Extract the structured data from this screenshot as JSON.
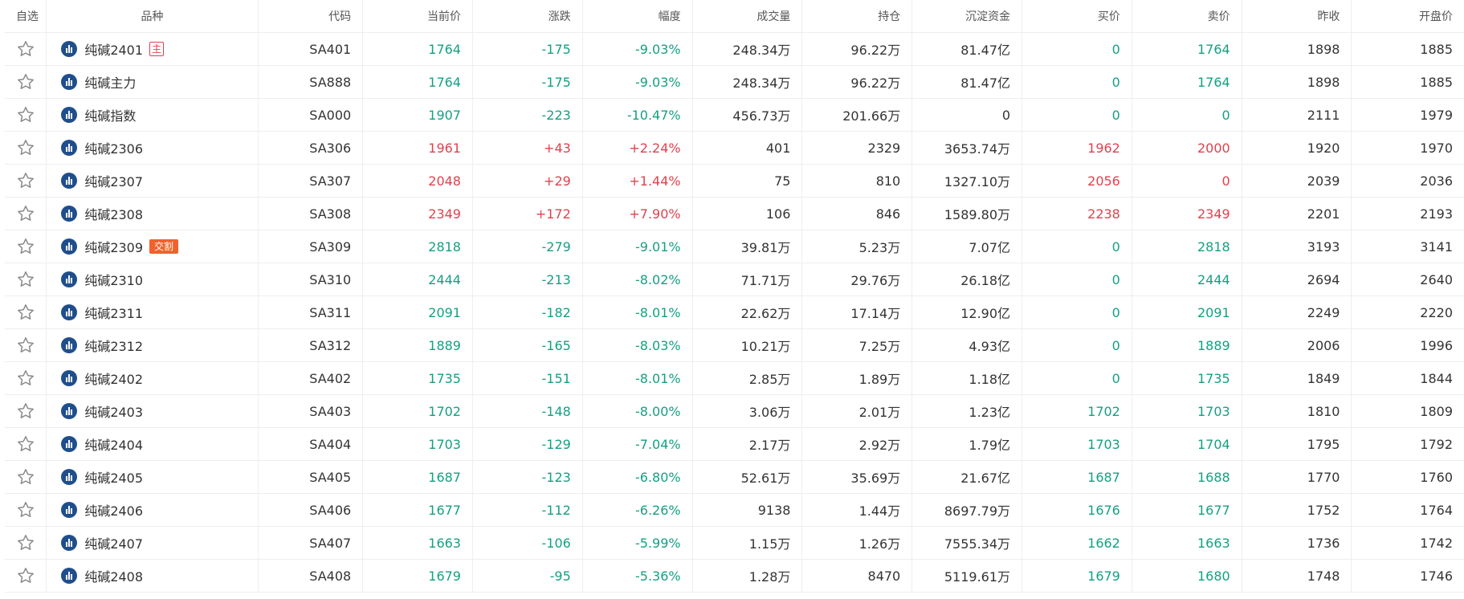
{
  "columns": [
    "自选",
    "品种",
    "代码",
    "当前价",
    "涨跌",
    "幅度",
    "成交量",
    "持仓",
    "沉淀资金",
    "买价",
    "卖价",
    "昨收",
    "开盘价"
  ],
  "rows": [
    {
      "name": "纯碱2401",
      "tag": "主",
      "tag_type": "main",
      "code": "SA401",
      "price": "1764",
      "change": "-175",
      "pct": "-9.03%",
      "volume": "248.34万",
      "oi": "96.22万",
      "fund": "81.47亿",
      "bid": "0",
      "ask": "1764",
      "prev": "1898",
      "open": "1885",
      "dir": "down",
      "bid_dir": "flat",
      "ask_dir": "down"
    },
    {
      "name": "纯碱主力",
      "tag": "",
      "tag_type": "",
      "code": "SA888",
      "price": "1764",
      "change": "-175",
      "pct": "-9.03%",
      "volume": "248.34万",
      "oi": "96.22万",
      "fund": "81.47亿",
      "bid": "0",
      "ask": "1764",
      "prev": "1898",
      "open": "1885",
      "dir": "down",
      "bid_dir": "flat",
      "ask_dir": "down"
    },
    {
      "name": "纯碱指数",
      "tag": "",
      "tag_type": "",
      "code": "SA000",
      "price": "1907",
      "change": "-223",
      "pct": "-10.47%",
      "volume": "456.73万",
      "oi": "201.66万",
      "fund": "0",
      "bid": "0",
      "ask": "0",
      "prev": "2111",
      "open": "1979",
      "dir": "down",
      "bid_dir": "flat",
      "ask_dir": "flat"
    },
    {
      "name": "纯碱2306",
      "tag": "",
      "tag_type": "",
      "code": "SA306",
      "price": "1961",
      "change": "+43",
      "pct": "+2.24%",
      "volume": "401",
      "oi": "2329",
      "fund": "3653.74万",
      "bid": "1962",
      "ask": "2000",
      "prev": "1920",
      "open": "1970",
      "dir": "up",
      "bid_dir": "up",
      "ask_dir": "up"
    },
    {
      "name": "纯碱2307",
      "tag": "",
      "tag_type": "",
      "code": "SA307",
      "price": "2048",
      "change": "+29",
      "pct": "+1.44%",
      "volume": "75",
      "oi": "810",
      "fund": "1327.10万",
      "bid": "2056",
      "ask": "0",
      "prev": "2039",
      "open": "2036",
      "dir": "up",
      "bid_dir": "up",
      "ask_dir": "up"
    },
    {
      "name": "纯碱2308",
      "tag": "",
      "tag_type": "",
      "code": "SA308",
      "price": "2349",
      "change": "+172",
      "pct": "+7.90%",
      "volume": "106",
      "oi": "846",
      "fund": "1589.80万",
      "bid": "2238",
      "ask": "2349",
      "prev": "2201",
      "open": "2193",
      "dir": "up",
      "bid_dir": "up",
      "ask_dir": "up"
    },
    {
      "name": "纯碱2309",
      "tag": "交割",
      "tag_type": "deliver",
      "code": "SA309",
      "price": "2818",
      "change": "-279",
      "pct": "-9.01%",
      "volume": "39.81万",
      "oi": "5.23万",
      "fund": "7.07亿",
      "bid": "0",
      "ask": "2818",
      "prev": "3193",
      "open": "3141",
      "dir": "down",
      "bid_dir": "flat",
      "ask_dir": "down"
    },
    {
      "name": "纯碱2310",
      "tag": "",
      "tag_type": "",
      "code": "SA310",
      "price": "2444",
      "change": "-213",
      "pct": "-8.02%",
      "volume": "71.71万",
      "oi": "29.76万",
      "fund": "26.18亿",
      "bid": "0",
      "ask": "2444",
      "prev": "2694",
      "open": "2640",
      "dir": "down",
      "bid_dir": "flat",
      "ask_dir": "down"
    },
    {
      "name": "纯碱2311",
      "tag": "",
      "tag_type": "",
      "code": "SA311",
      "price": "2091",
      "change": "-182",
      "pct": "-8.01%",
      "volume": "22.62万",
      "oi": "17.14万",
      "fund": "12.90亿",
      "bid": "0",
      "ask": "2091",
      "prev": "2249",
      "open": "2220",
      "dir": "down",
      "bid_dir": "flat",
      "ask_dir": "down"
    },
    {
      "name": "纯碱2312",
      "tag": "",
      "tag_type": "",
      "code": "SA312",
      "price": "1889",
      "change": "-165",
      "pct": "-8.03%",
      "volume": "10.21万",
      "oi": "7.25万",
      "fund": "4.93亿",
      "bid": "0",
      "ask": "1889",
      "prev": "2006",
      "open": "1996",
      "dir": "down",
      "bid_dir": "flat",
      "ask_dir": "down"
    },
    {
      "name": "纯碱2402",
      "tag": "",
      "tag_type": "",
      "code": "SA402",
      "price": "1735",
      "change": "-151",
      "pct": "-8.01%",
      "volume": "2.85万",
      "oi": "1.89万",
      "fund": "1.18亿",
      "bid": "0",
      "ask": "1735",
      "prev": "1849",
      "open": "1844",
      "dir": "down",
      "bid_dir": "flat",
      "ask_dir": "down"
    },
    {
      "name": "纯碱2403",
      "tag": "",
      "tag_type": "",
      "code": "SA403",
      "price": "1702",
      "change": "-148",
      "pct": "-8.00%",
      "volume": "3.06万",
      "oi": "2.01万",
      "fund": "1.23亿",
      "bid": "1702",
      "ask": "1703",
      "prev": "1810",
      "open": "1809",
      "dir": "down",
      "bid_dir": "down",
      "ask_dir": "down"
    },
    {
      "name": "纯碱2404",
      "tag": "",
      "tag_type": "",
      "code": "SA404",
      "price": "1703",
      "change": "-129",
      "pct": "-7.04%",
      "volume": "2.17万",
      "oi": "2.92万",
      "fund": "1.79亿",
      "bid": "1703",
      "ask": "1704",
      "prev": "1795",
      "open": "1792",
      "dir": "down",
      "bid_dir": "down",
      "ask_dir": "down"
    },
    {
      "name": "纯碱2405",
      "tag": "",
      "tag_type": "",
      "code": "SA405",
      "price": "1687",
      "change": "-123",
      "pct": "-6.80%",
      "volume": "52.61万",
      "oi": "35.69万",
      "fund": "21.67亿",
      "bid": "1687",
      "ask": "1688",
      "prev": "1770",
      "open": "1760",
      "dir": "down",
      "bid_dir": "down",
      "ask_dir": "down"
    },
    {
      "name": "纯碱2406",
      "tag": "",
      "tag_type": "",
      "code": "SA406",
      "price": "1677",
      "change": "-112",
      "pct": "-6.26%",
      "volume": "9138",
      "oi": "1.44万",
      "fund": "8697.79万",
      "bid": "1676",
      "ask": "1677",
      "prev": "1752",
      "open": "1764",
      "dir": "down",
      "bid_dir": "down",
      "ask_dir": "down"
    },
    {
      "name": "纯碱2407",
      "tag": "",
      "tag_type": "",
      "code": "SA407",
      "price": "1663",
      "change": "-106",
      "pct": "-5.99%",
      "volume": "1.15万",
      "oi": "1.26万",
      "fund": "7555.34万",
      "bid": "1662",
      "ask": "1663",
      "prev": "1736",
      "open": "1742",
      "dir": "down",
      "bid_dir": "down",
      "ask_dir": "down"
    },
    {
      "name": "纯碱2408",
      "tag": "",
      "tag_type": "",
      "code": "SA408",
      "price": "1679",
      "change": "-95",
      "pct": "-5.36%",
      "volume": "1.28万",
      "oi": "8470",
      "fund": "5119.61万",
      "bid": "1679",
      "ask": "1680",
      "prev": "1748",
      "open": "1746",
      "dir": "down",
      "bid_dir": "down",
      "ask_dir": "down"
    }
  ],
  "colors": {
    "up": "#e0414f",
    "down": "#14a083",
    "icon": "#1f4e8c",
    "deliver_tag": "#f0622d"
  },
  "icons": {
    "favorite": "star-outline-icon",
    "chart": "bar-chart-icon"
  }
}
